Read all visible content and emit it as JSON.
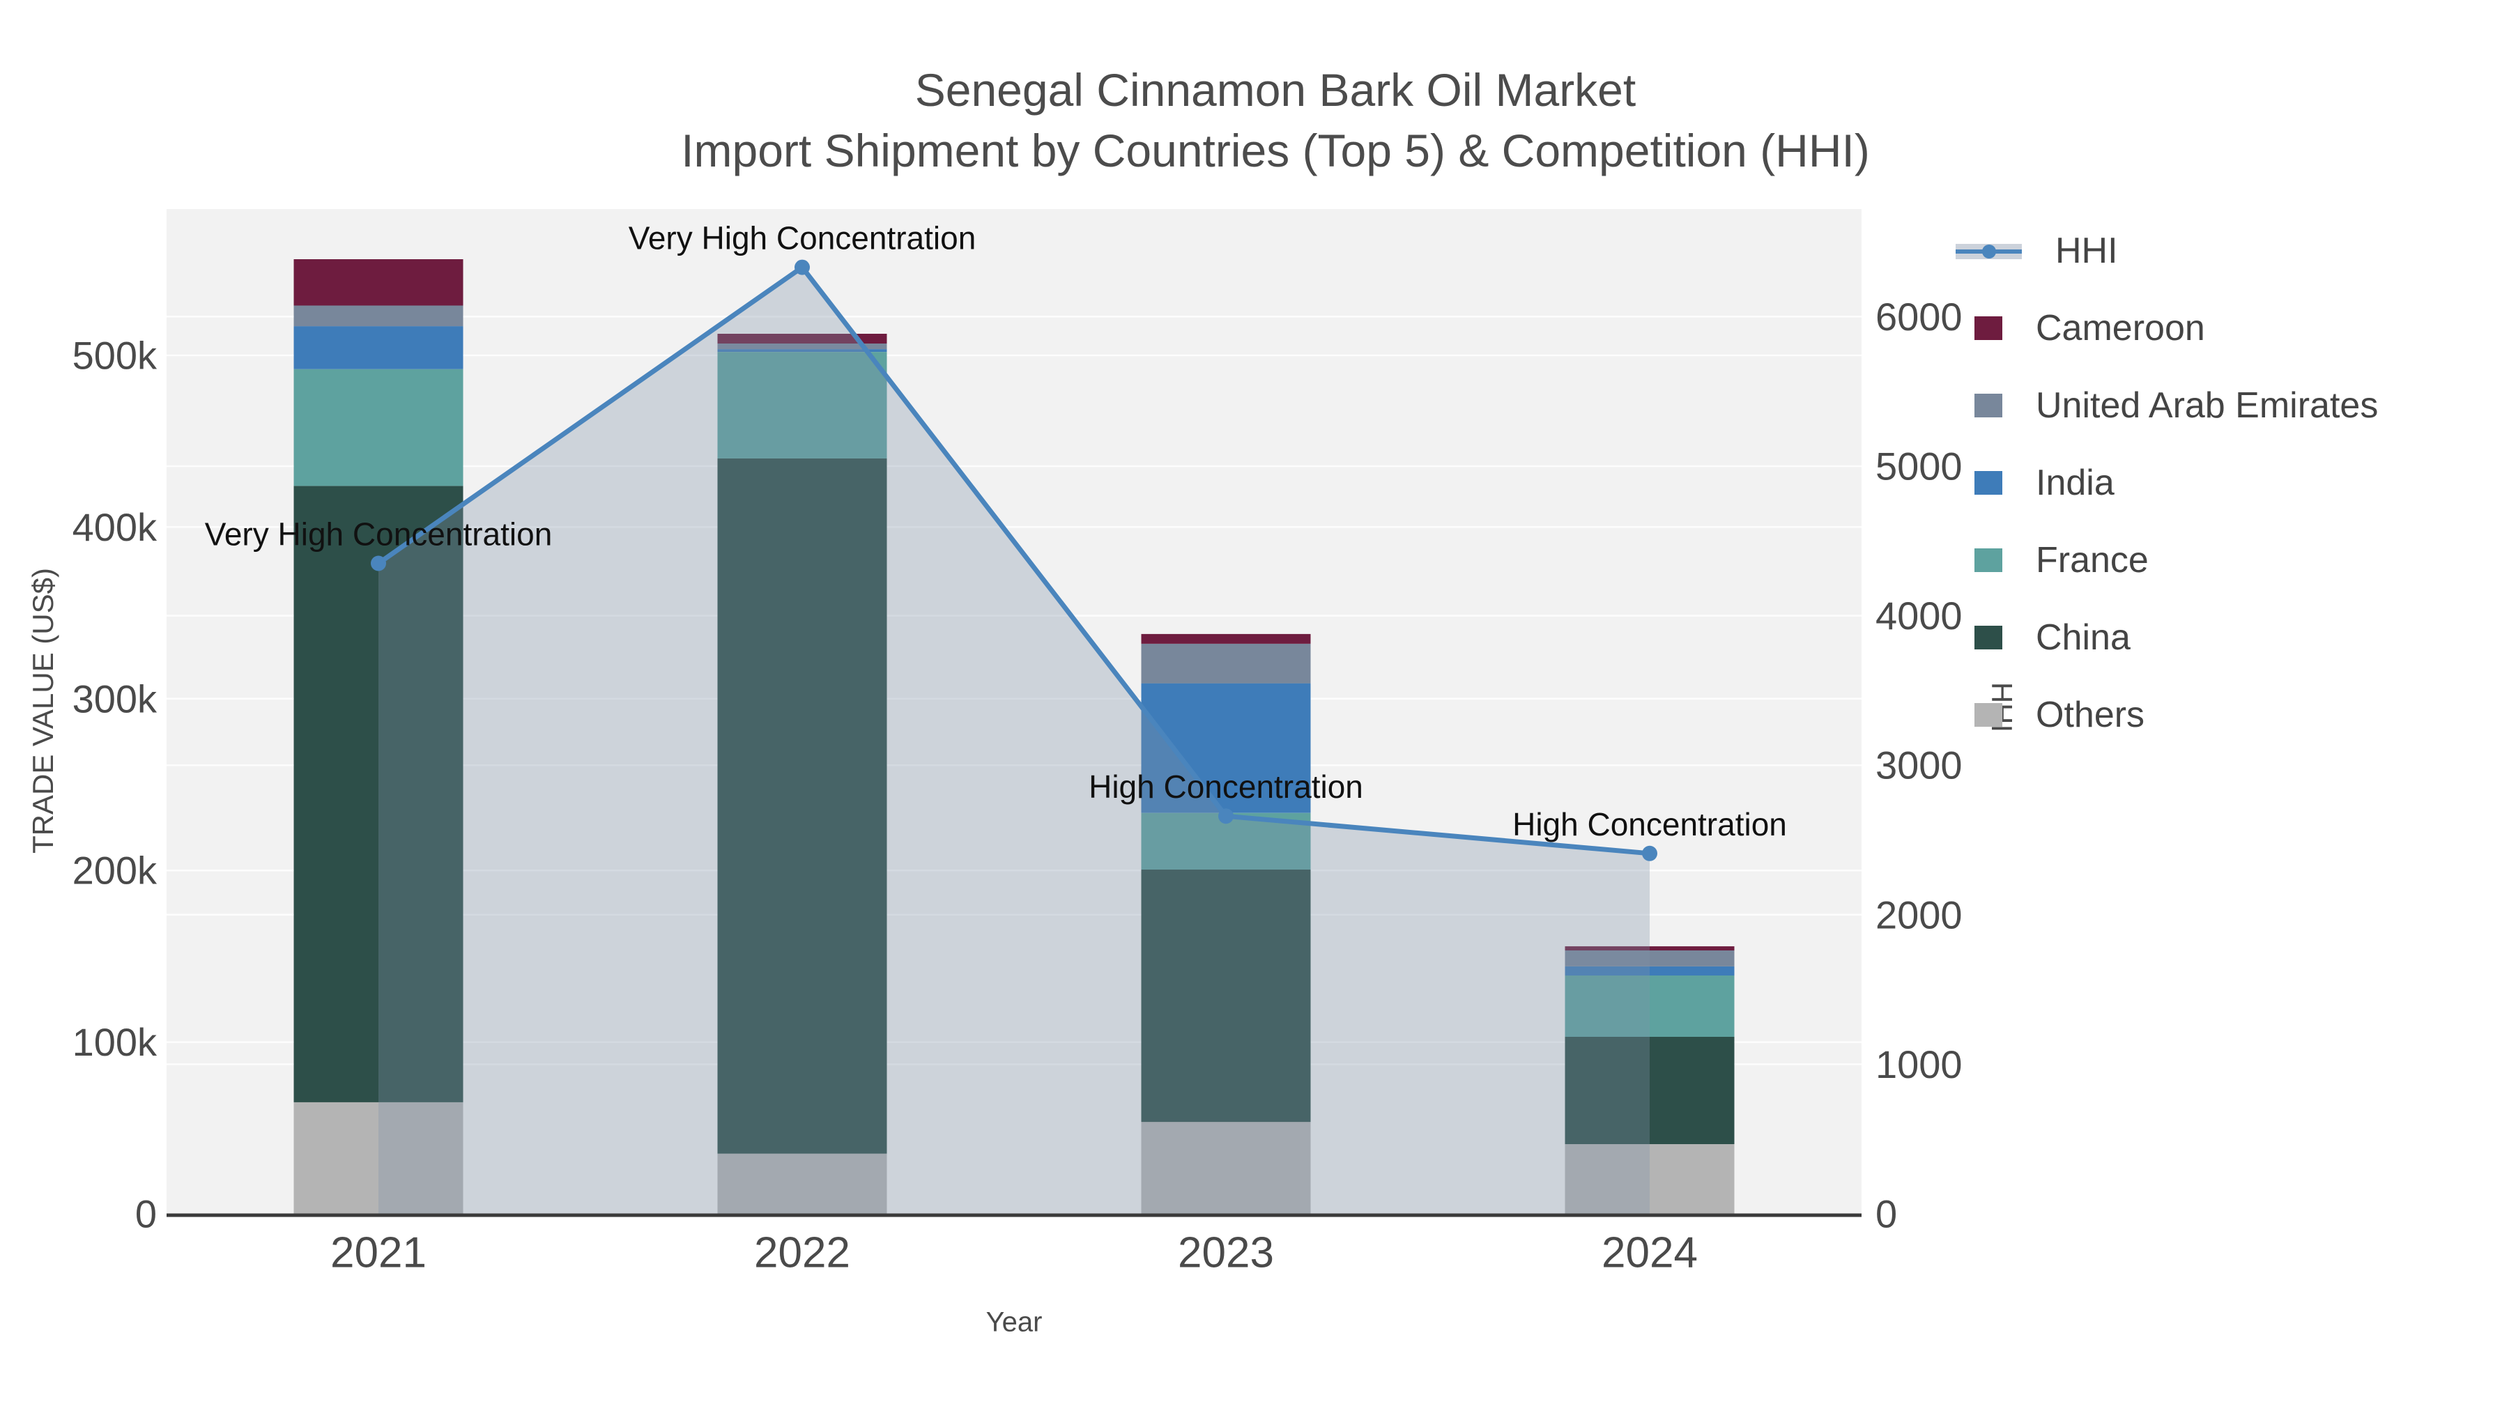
{
  "chart_data": {
    "type": "combo: stacked-bar + line-area",
    "title": "Senegal Cinnamon Bark Oil Market",
    "subtitle": "Import Shipment by Countries (Top 5) & Competition (HHI)",
    "xlabel": "Year",
    "ylabel": "TRADE VALUE (US$)",
    "y2label": "HHI",
    "categories": [
      "2021",
      "2022",
      "2023",
      "2024"
    ],
    "bar_series_bottom_to_top": [
      {
        "name": "Others",
        "color": "#b4b4b4",
        "values": [
          65000,
          35000,
          53500,
          40600
        ]
      },
      {
        "name": "China",
        "color": "#2d4f49",
        "values": [
          359000,
          405000,
          147000,
          62500
        ]
      },
      {
        "name": "France",
        "color": "#5ea29f",
        "values": [
          68000,
          62000,
          33000,
          35700
        ]
      },
      {
        "name": "India",
        "color": "#3e7cb9",
        "values": [
          25000,
          1600,
          75500,
          5300
        ]
      },
      {
        "name": "United Arab Emirates",
        "color": "#78879b",
        "values": [
          12000,
          3300,
          23000,
          9300
        ]
      },
      {
        "name": "Cameroon",
        "color": "#6e1c3f",
        "values": [
          27000,
          5700,
          5700,
          2400
        ]
      }
    ],
    "line_series": {
      "name": "HHI",
      "color": "#4a85bd",
      "fill_color": "#7e91a7",
      "fill_opacity": 0.32,
      "values": [
        4350,
        6330,
        2660,
        2410
      ]
    },
    "annotations": [
      {
        "year": "2021",
        "label": "Very High Concentration"
      },
      {
        "year": "2022",
        "label": "Very High Concentration"
      },
      {
        "year": "2023",
        "label": "High Concentration"
      },
      {
        "year": "2024",
        "label": "High Concentration"
      }
    ],
    "legend_order": [
      "HHI",
      "Cameroon",
      "United Arab Emirates",
      "India",
      "France",
      "China",
      "Others"
    ],
    "y_axis": {
      "ticks": [
        {
          "v": 0,
          "label": "0"
        },
        {
          "v": 100000,
          "label": "100k"
        },
        {
          "v": 200000,
          "label": "200k"
        },
        {
          "v": 300000,
          "label": "300k"
        },
        {
          "v": 400000,
          "label": "400k"
        },
        {
          "v": 500000,
          "label": "500k"
        }
      ],
      "range": [
        0,
        586000
      ]
    },
    "y2_axis": {
      "ticks": [
        {
          "v": 0,
          "label": "0"
        },
        {
          "v": 1000,
          "label": "1000"
        },
        {
          "v": 2000,
          "label": "2000"
        },
        {
          "v": 3000,
          "label": "3000"
        },
        {
          "v": 4000,
          "label": "4000"
        },
        {
          "v": 5000,
          "label": "5000"
        },
        {
          "v": 6000,
          "label": "6000"
        }
      ],
      "range": [
        0,
        6720
      ]
    },
    "colors": {
      "plot_bg": "#f2f2f2",
      "gridline": "#ffffff",
      "axis_line": "#3a3a3a",
      "tick_text": "#4a4a4a",
      "title_text": "#4c4c4c",
      "annotation_text": "#111111",
      "legend_text": "#444444",
      "hhi_legend_band": "#ccd2db"
    }
  }
}
